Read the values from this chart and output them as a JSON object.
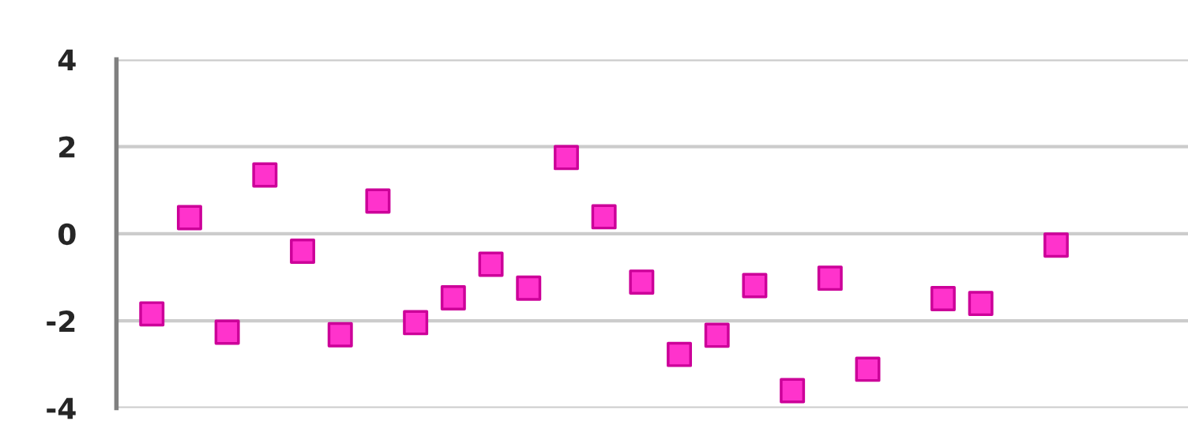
{
  "chart_data": {
    "type": "scatter",
    "categories": [
      null,
      null,
      null,
      null,
      null,
      null,
      null,
      null,
      null,
      null,
      null,
      null,
      null,
      null,
      null,
      null,
      null,
      null,
      null,
      null,
      null,
      null,
      null,
      null,
      null,
      null,
      null,
      null
    ],
    "series": [
      {
        "color": "#ff33cc",
        "values": [
          -1.84,
          0.37,
          -2.26,
          1.35,
          -0.4,
          -2.32,
          0.75,
          -2.04,
          -1.47,
          -0.7,
          -1.25,
          1.75,
          0.39,
          -1.11,
          -2.77,
          -2.33,
          -1.19,
          -3.6,
          -1.02,
          -3.11,
          null,
          -1.49,
          -1.6,
          null,
          -0.26,
          null,
          null,
          null
        ]
      }
    ],
    "ylim": [
      -4,
      4
    ],
    "yticks": [
      -4,
      -2,
      0,
      2,
      4
    ],
    "grid": "y",
    "marker": "square",
    "tick_labels": "y"
  }
}
